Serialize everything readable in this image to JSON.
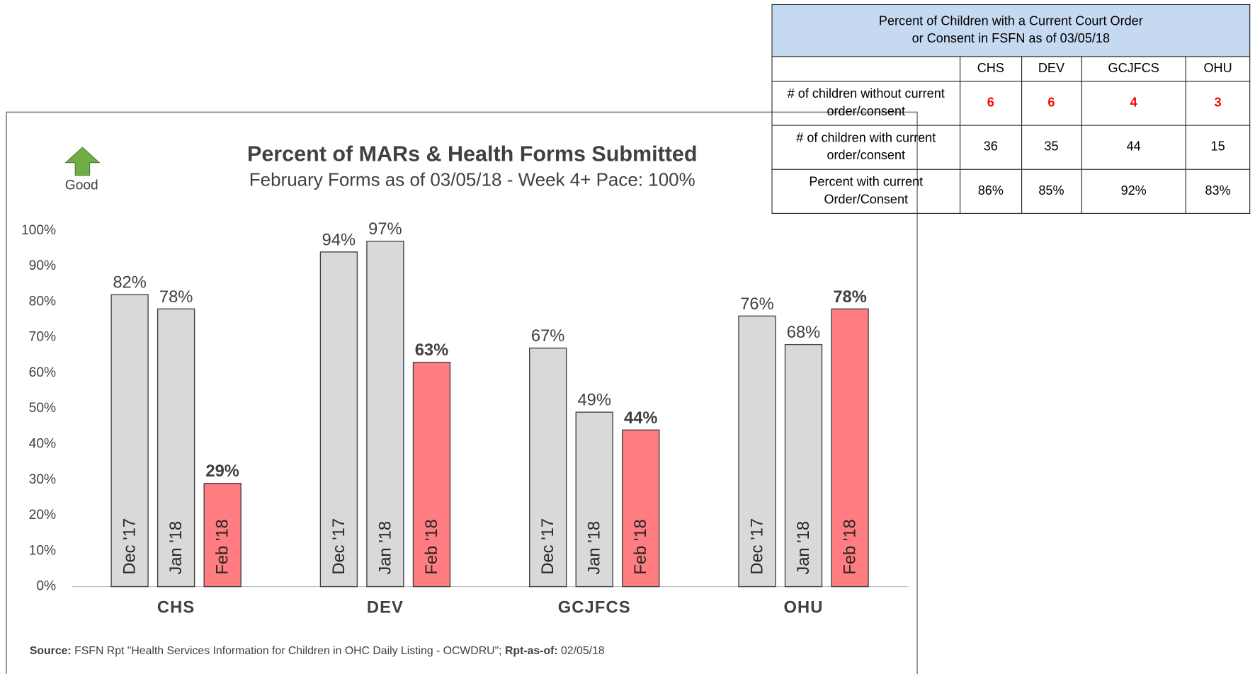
{
  "chart_data": {
    "type": "bar",
    "title": "Percent of MARs & Health Forms Submitted",
    "subtitle": "February Forms as of 03/05/18 - Week 4+ Pace: 100%",
    "indicator": "Good",
    "categories": [
      "CHS",
      "DEV",
      "GCJFCS",
      "OHU"
    ],
    "series": [
      {
        "name": "Dec '17",
        "color": "#d9d9d9",
        "values": [
          82,
          94,
          67,
          76
        ],
        "value_labels": [
          "82%",
          "94%",
          "67%",
          "76%"
        ]
      },
      {
        "name": "Jan '18",
        "color": "#d9d9d9",
        "values": [
          78,
          97,
          49,
          68
        ],
        "value_labels": [
          "78%",
          "97%",
          "49%",
          "68%"
        ]
      },
      {
        "name": "Feb '18",
        "color": "#ff7c80",
        "values": [
          29,
          63,
          44,
          78
        ],
        "value_labels": [
          "29%",
          "63%",
          "44%",
          "78%"
        ]
      }
    ],
    "ylim": [
      0,
      100
    ],
    "yticks": [
      {
        "value": 0,
        "label": "0%"
      },
      {
        "value": 10,
        "label": "10%"
      },
      {
        "value": 20,
        "label": "20%"
      },
      {
        "value": 30,
        "label": "30%"
      },
      {
        "value": 40,
        "label": "40%"
      },
      {
        "value": 50,
        "label": "50%"
      },
      {
        "value": 60,
        "label": "60%"
      },
      {
        "value": 70,
        "label": "70%"
      },
      {
        "value": 80,
        "label": "80%"
      },
      {
        "value": 90,
        "label": "90%"
      },
      {
        "value": 100,
        "label": "100%"
      }
    ],
    "grid": false,
    "source": {
      "label": "Source:",
      "text": "FSFN Rpt \"Health Services Information for Children in OHC Daily Listing - OCWDRU\";",
      "date_label": "Rpt-as-of:",
      "date": "02/05/18"
    }
  },
  "table": {
    "title": [
      "Percent of Children with a Current Court Order",
      "or Consent in FSFN as of 03/05/18"
    ],
    "columns": [
      "CHS",
      "DEV",
      "GCJFCS",
      "OHU"
    ],
    "rows": [
      [
        "# of children without current order/consent",
        6,
        6,
        4,
        3
      ],
      [
        "# of children with current order/consent",
        36,
        35,
        44,
        15
      ],
      [
        "Percent with current Order/Consent",
        "86%",
        "85%",
        "92%",
        "83%"
      ]
    ]
  }
}
